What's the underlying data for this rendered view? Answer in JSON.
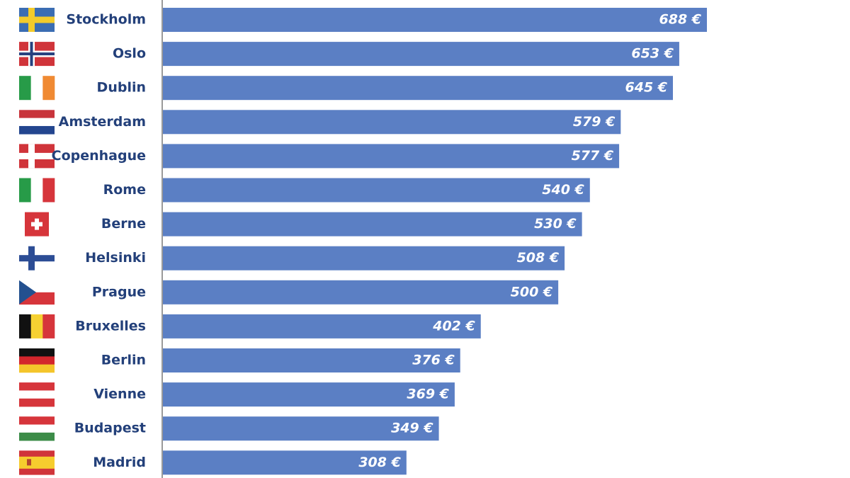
{
  "chart_data": {
    "type": "bar",
    "orientation": "horizontal",
    "color": "#5b7fc4",
    "categories": [
      "Stockholm",
      "Oslo",
      "Dublin",
      "Amsterdam",
      "Copenhague",
      "Rome",
      "Berne",
      "Helsinki",
      "Prague",
      "Bruxelles",
      "Berlin",
      "Vienne",
      "Budapest",
      "Madrid"
    ],
    "values": [
      688,
      653,
      645,
      579,
      577,
      540,
      530,
      508,
      500,
      402,
      376,
      369,
      349,
      308
    ],
    "value_labels": [
      "688 €",
      "653 €",
      "645 €",
      "579 €",
      "577 €",
      "540 €",
      "530 €",
      "508 €",
      "500 €",
      "402 €",
      "376 €",
      "369 €",
      "349 €",
      "308 €"
    ]
  }
}
